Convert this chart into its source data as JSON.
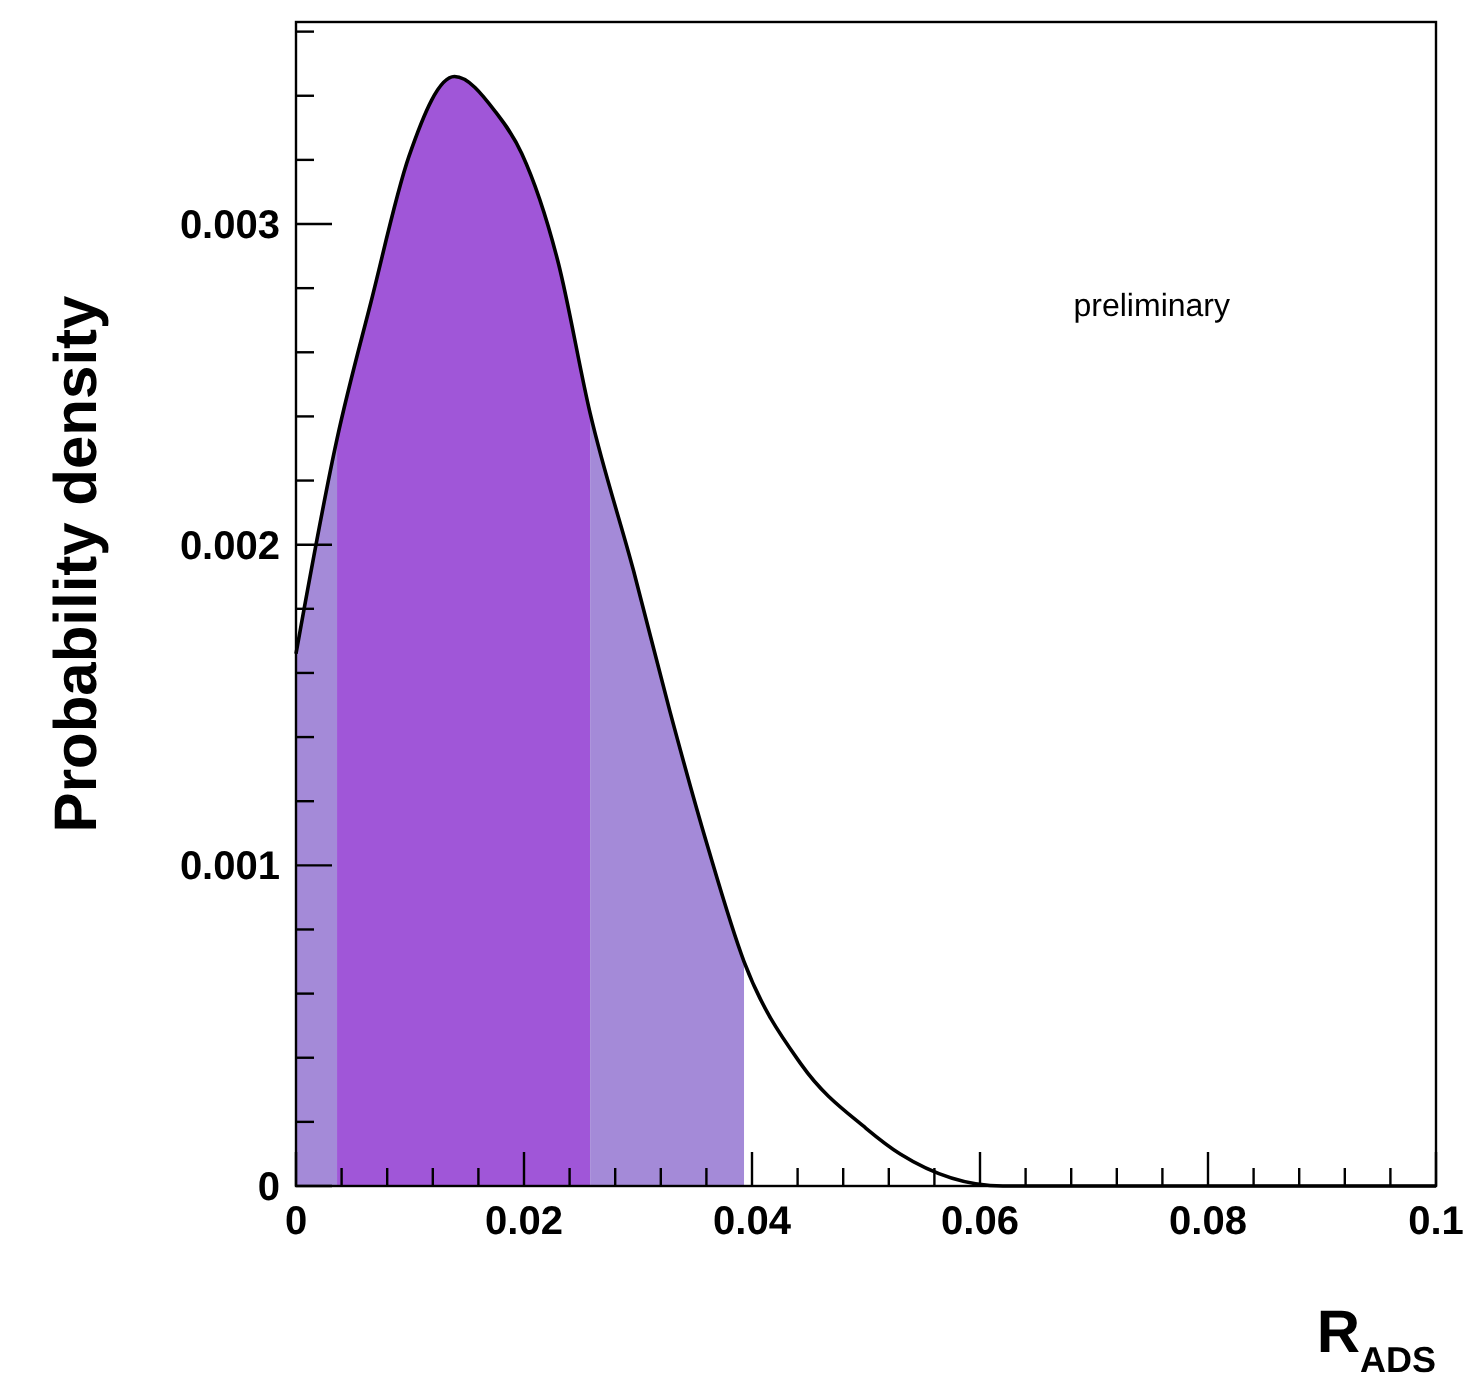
{
  "chart_data": {
    "type": "line",
    "xlabel": "R$_{ADS}$",
    "ylabel": "Probability density",
    "annotations": [
      "preliminary"
    ],
    "xlim": [
      0,
      0.1
    ],
    "ylim": [
      0,
      0.00363
    ],
    "xticks": [
      0,
      {
        "value": 0.004,
        "label": null
      },
      {
        "value": 0.008,
        "label": null
      },
      {
        "value": 0.012,
        "label": null
      },
      {
        "value": 0.016,
        "label": null
      },
      0.02,
      {
        "value": 0.024,
        "label": null
      },
      {
        "value": 0.028,
        "label": null
      },
      {
        "value": 0.032,
        "label": null
      },
      {
        "value": 0.036,
        "label": null
      },
      0.04,
      {
        "value": 0.044,
        "label": null
      },
      {
        "value": 0.048,
        "label": null
      },
      {
        "value": 0.052,
        "label": null
      },
      {
        "value": 0.056,
        "label": null
      },
      0.06,
      {
        "value": 0.064,
        "label": null
      },
      {
        "value": 0.068,
        "label": null
      },
      {
        "value": 0.072,
        "label": null
      },
      {
        "value": 0.076,
        "label": null
      },
      0.08,
      {
        "value": 0.084,
        "label": null
      },
      {
        "value": 0.088,
        "label": null
      },
      {
        "value": 0.092,
        "label": null
      },
      {
        "value": 0.096,
        "label": null
      },
      0.1
    ],
    "yticks": [
      0,
      {
        "value": 0.0002,
        "label": null
      },
      {
        "value": 0.0004,
        "label": null
      },
      {
        "value": 0.0006,
        "label": null
      },
      {
        "value": 0.0008,
        "label": null
      },
      0.001,
      {
        "value": 0.0012,
        "label": null
      },
      {
        "value": 0.0014,
        "label": null
      },
      {
        "value": 0.0016,
        "label": null
      },
      {
        "value": 0.0018,
        "label": null
      },
      0.002,
      {
        "value": 0.0022,
        "label": null
      },
      {
        "value": 0.0024,
        "label": null
      },
      {
        "value": 0.0026,
        "label": null
      },
      {
        "value": 0.0028,
        "label": null
      },
      0.003,
      {
        "value": 0.0032,
        "label": null
      },
      {
        "value": 0.0034,
        "label": null
      },
      {
        "value": 0.0036,
        "label": null
      }
    ],
    "series": [
      {
        "type": "area",
        "color": "#a48ad8",
        "x": [
          0,
          0.0036
        ],
        "values": [
          0.00166,
          0.00233
        ]
      },
      {
        "type": "area",
        "color": "#a056d8",
        "x": [
          0.0036,
          0.0066,
          0.0099,
          0.0139,
          0.0175,
          0.0198,
          0.023,
          0.0258
        ],
        "values": [
          0.00233,
          0.00276,
          0.00321,
          0.00346,
          0.00335,
          0.00322,
          0.00288,
          0.00241
        ]
      },
      {
        "type": "area",
        "color": "#a48ad8",
        "x": [
          0.0258,
          0.0296,
          0.0328,
          0.0361,
          0.0393
        ],
        "values": [
          0.00241,
          0.00192,
          0.00148,
          0.00106,
          0.0007
        ]
      },
      {
        "x": [
          0,
          0.0036,
          0.0066,
          0.0099,
          0.0139,
          0.0175,
          0.0198,
          0.023,
          0.0258,
          0.0296,
          0.0328,
          0.0361,
          0.0393,
          0.0443,
          0.05,
          0.053,
          0.062,
          0.1
        ],
        "color": "#000000",
        "values": [
          0.00166,
          0.00233,
          0.00276,
          0.00321,
          0.00346,
          0.00335,
          0.00322,
          0.00288,
          0.00241,
          0.00192,
          0.00148,
          0.00106,
          0.0007,
          0.00038,
          0.00018,
          0.0001,
          0,
          0
        ]
      }
    ]
  }
}
